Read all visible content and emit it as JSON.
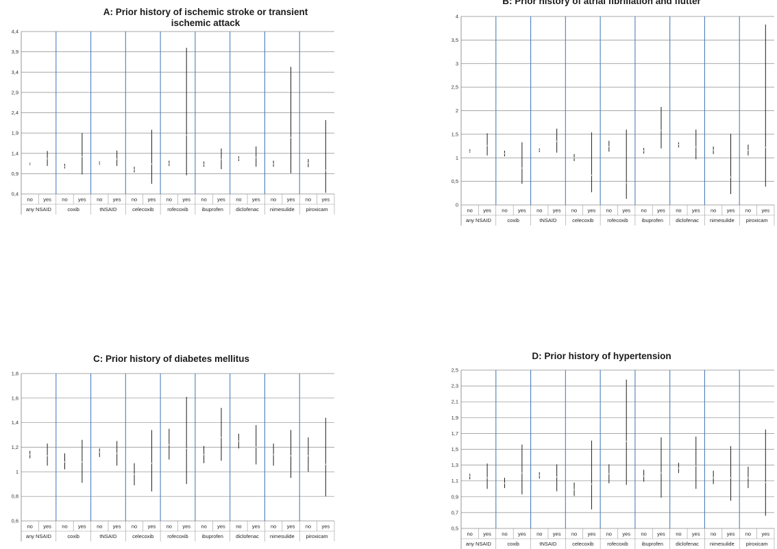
{
  "chart_data": [
    {
      "id": "A",
      "type": "scatter",
      "title": "A: Prior history of ischemic stroke or transient ischemic attack",
      "ylim": [
        0.4,
        4.4
      ],
      "yticks": [
        "0,4",
        "0,9",
        "1,4",
        "1,9",
        "2,4",
        "2,9",
        "3,4",
        "3,9",
        "4,4"
      ],
      "subcategories": [
        "no",
        "yes"
      ],
      "categories": [
        "any NSAID",
        "coxib",
        "tNSAID",
        "celecoxib",
        "rofecoxib",
        "ibuprofen",
        "diclofenac",
        "nimesulide",
        "piroxicam"
      ],
      "values": [
        [
          [
            1.14,
            1.11,
            1.17
          ],
          [
            1.27,
            1.09,
            1.46
          ]
        ],
        [
          [
            1.08,
            1.03,
            1.14
          ],
          [
            1.32,
            0.88,
            1.9
          ]
        ],
        [
          [
            1.16,
            1.12,
            1.2
          ],
          [
            1.26,
            1.09,
            1.47
          ]
        ],
        [
          [
            1.0,
            0.93,
            1.07
          ],
          [
            1.14,
            0.65,
            1.98
          ]
        ],
        [
          [
            1.15,
            1.09,
            1.22
          ],
          [
            1.85,
            0.86,
            4.0
          ]
        ],
        [
          [
            1.13,
            1.07,
            1.2
          ],
          [
            1.25,
            1.01,
            1.52
          ]
        ],
        [
          [
            1.27,
            1.21,
            1.33
          ],
          [
            1.3,
            1.07,
            1.57
          ]
        ],
        [
          [
            1.14,
            1.07,
            1.22
          ],
          [
            1.79,
            0.91,
            3.53
          ]
        ],
        [
          [
            1.16,
            1.06,
            1.26
          ],
          [
            0.98,
            0.43,
            2.22
          ]
        ]
      ]
    },
    {
      "id": "B",
      "type": "scatter",
      "title": "B: Prior history of atrial fibrillation and flutter",
      "ylim": [
        0,
        4
      ],
      "yticks": [
        "0",
        "0,5",
        "1",
        "1,5",
        "2",
        "2,5",
        "3",
        "3,5",
        "4"
      ],
      "subcategories": [
        "no",
        "yes"
      ],
      "categories": [
        "any NSAID",
        "coxib",
        "tNSAID",
        "celecoxib",
        "rofecoxib",
        "ibuprofen",
        "diclofenac",
        "nimesulide",
        "piroxicam"
      ],
      "values": [
        [
          [
            1.14,
            1.11,
            1.18
          ],
          [
            1.26,
            1.05,
            1.52
          ]
        ],
        [
          [
            1.09,
            1.03,
            1.15
          ],
          [
            0.78,
            0.45,
            1.33
          ]
        ],
        [
          [
            1.16,
            1.12,
            1.2
          ],
          [
            1.35,
            1.11,
            1.62
          ]
        ],
        [
          [
            1.0,
            0.93,
            1.08
          ],
          [
            0.63,
            0.27,
            1.54
          ]
        ],
        [
          [
            1.24,
            1.13,
            1.36
          ],
          [
            0.47,
            0.13,
            1.6
          ]
        ],
        [
          [
            1.15,
            1.09,
            1.21
          ],
          [
            1.58,
            1.2,
            2.08
          ]
        ],
        [
          [
            1.28,
            1.22,
            1.33
          ],
          [
            1.23,
            0.97,
            1.6
          ]
        ],
        [
          [
            1.16,
            1.08,
            1.24
          ],
          [
            0.59,
            0.23,
            1.51
          ]
        ],
        [
          [
            1.16,
            1.05,
            1.28
          ],
          [
            1.22,
            0.39,
            3.83
          ]
        ]
      ]
    },
    {
      "id": "C",
      "type": "scatter",
      "title": "C: Prior history of diabetes mellitus",
      "ylim": [
        0.6,
        1.8
      ],
      "yticks": [
        "0,6",
        "0,8",
        "1",
        "1,2",
        "1,4",
        "1,6",
        "1,8"
      ],
      "subcategories": [
        "no",
        "yes"
      ],
      "categories": [
        "any NSAID",
        "coxib",
        "tNSAID",
        "celecoxib",
        "rofecoxib",
        "ibuprofen",
        "diclofenac",
        "nimesulide",
        "piroxicam"
      ],
      "values": [
        [
          [
            1.14,
            1.11,
            1.17
          ],
          [
            1.13,
            1.05,
            1.23
          ]
        ],
        [
          [
            1.08,
            1.02,
            1.15
          ],
          [
            1.08,
            0.91,
            1.26
          ]
        ],
        [
          [
            1.16,
            1.12,
            1.19
          ],
          [
            1.15,
            1.05,
            1.25
          ]
        ],
        [
          [
            0.98,
            0.89,
            1.07
          ],
          [
            1.07,
            0.84,
            1.34
          ]
        ],
        [
          [
            1.22,
            1.1,
            1.35
          ],
          [
            1.19,
            0.9,
            1.61
          ]
        ],
        [
          [
            1.14,
            1.07,
            1.21
          ],
          [
            1.28,
            1.09,
            1.52
          ]
        ],
        [
          [
            1.25,
            1.19,
            1.31
          ],
          [
            1.2,
            1.06,
            1.38
          ]
        ],
        [
          [
            1.14,
            1.05,
            1.23
          ],
          [
            1.13,
            0.95,
            1.34
          ]
        ],
        [
          [
            1.13,
            1.0,
            1.28
          ],
          [
            1.06,
            0.8,
            1.44
          ]
        ]
      ]
    },
    {
      "id": "D",
      "type": "scatter",
      "title": "D: Prior history of hypertension",
      "ylim": [
        0.5,
        2.5
      ],
      "yticks": [
        "0,5",
        "0,7",
        "0,9",
        "1,1",
        "1,3",
        "1,5",
        "1,7",
        "1,9",
        "2,1",
        "2,3",
        "2,5"
      ],
      "subcategories": [
        "no",
        "yes"
      ],
      "categories": [
        "any NSAID",
        "coxib",
        "tNSAID",
        "celecoxib",
        "rofecoxib",
        "ibuprofen",
        "diclofenac",
        "nimesulide",
        "piroxicam"
      ],
      "values": [
        [
          [
            1.16,
            1.12,
            1.19
          ],
          [
            1.14,
            1.0,
            1.32
          ]
        ],
        [
          [
            1.07,
            1.01,
            1.14
          ],
          [
            1.2,
            0.93,
            1.56
          ]
        ],
        [
          [
            1.17,
            1.13,
            1.21
          ],
          [
            1.15,
            0.97,
            1.31
          ]
        ],
        [
          [
            0.99,
            0.91,
            1.08
          ],
          [
            1.06,
            0.74,
            1.61
          ]
        ],
        [
          [
            1.19,
            1.07,
            1.31
          ],
          [
            1.6,
            1.05,
            2.38
          ]
        ],
        [
          [
            1.16,
            1.09,
            1.24
          ],
          [
            1.2,
            0.89,
            1.65
          ]
        ],
        [
          [
            1.26,
            1.2,
            1.33
          ],
          [
            1.29,
            1.0,
            1.66
          ]
        ],
        [
          [
            1.14,
            1.06,
            1.23
          ],
          [
            1.14,
            0.85,
            1.54
          ]
        ],
        [
          [
            1.14,
            1.01,
            1.28
          ],
          [
            1.08,
            0.66,
            1.75
          ]
        ]
      ]
    }
  ]
}
